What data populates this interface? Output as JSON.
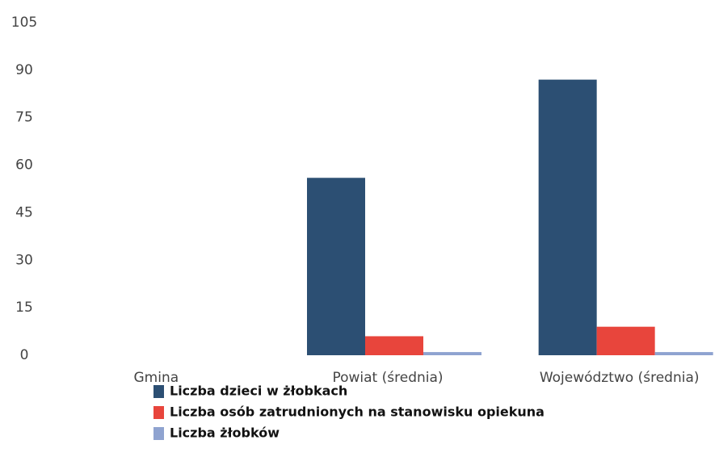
{
  "chart_data": {
    "type": "bar",
    "categories": [
      "Gmina",
      "Powiat (średnia)",
      "Województwo (średnia)"
    ],
    "series": [
      {
        "name": "Liczba dzieci w żłobkach",
        "color": "#2c4f73",
        "values": [
          null,
          56,
          87
        ]
      },
      {
        "name": "Liczba osób zatrudnionych na stanowisku opiekuna",
        "color": "#e8453c",
        "values": [
          null,
          6,
          9
        ]
      },
      {
        "name": "Liczba żłobków",
        "color": "#8fa3d0",
        "values": [
          null,
          1,
          1
        ]
      }
    ],
    "ylim": [
      0,
      105
    ],
    "yticks": [
      0,
      15,
      30,
      45,
      60,
      75,
      90,
      105
    ],
    "grid": false
  }
}
